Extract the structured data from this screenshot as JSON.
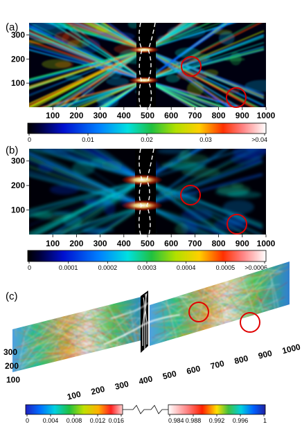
{
  "chart_data": [
    {
      "panel": "(a)",
      "type": "heatmap",
      "x_ticks": [
        "100",
        "200",
        "300",
        "400",
        "500",
        "600",
        "700",
        "800",
        "900",
        "1000"
      ],
      "y_ticks": [
        "300",
        "200",
        "100"
      ],
      "xlim": [
        0,
        1000
      ],
      "ylim": [
        0,
        350
      ],
      "colorbar": {
        "ticks": [
          "0",
          "0.01",
          "0.02",
          "0.03",
          ">0.04"
        ],
        "range": [
          0,
          0.04
        ]
      },
      "circles": [
        {
          "x": 690,
          "y": 175
        },
        {
          "x": 870,
          "y": 25
        }
      ]
    },
    {
      "panel": "(b)",
      "type": "heatmap",
      "x_ticks": [
        "100",
        "200",
        "300",
        "400",
        "500",
        "600",
        "700",
        "800",
        "900",
        "1000"
      ],
      "y_ticks": [
        "300",
        "200",
        "100"
      ],
      "xlim": [
        0,
        1000
      ],
      "ylim": [
        0,
        350
      ],
      "colorbar": {
        "ticks": [
          "0",
          "0.0001",
          "0.0002",
          "0.0003",
          "0.0004",
          "0.0005",
          ">0.0006"
        ],
        "range": [
          0,
          0.0006
        ]
      },
      "circles": [
        {
          "x": 690,
          "y": 175
        },
        {
          "x": 885,
          "y": 40
        }
      ]
    },
    {
      "panel": "(c)",
      "type": "heatmap",
      "x_ticks": [
        "100",
        "200",
        "300",
        "400",
        "500",
        "600",
        "700",
        "800",
        "900",
        "1000"
      ],
      "y_ticks": [
        "300",
        "200",
        "100"
      ],
      "colorbar": {
        "ticks_low": [
          "0",
          "0.004",
          "0.008",
          "0.012",
          "0.016"
        ],
        "ticks_high": [
          "0.984",
          "0.988",
          "0.992",
          "0.996",
          "1"
        ]
      }
    }
  ]
}
